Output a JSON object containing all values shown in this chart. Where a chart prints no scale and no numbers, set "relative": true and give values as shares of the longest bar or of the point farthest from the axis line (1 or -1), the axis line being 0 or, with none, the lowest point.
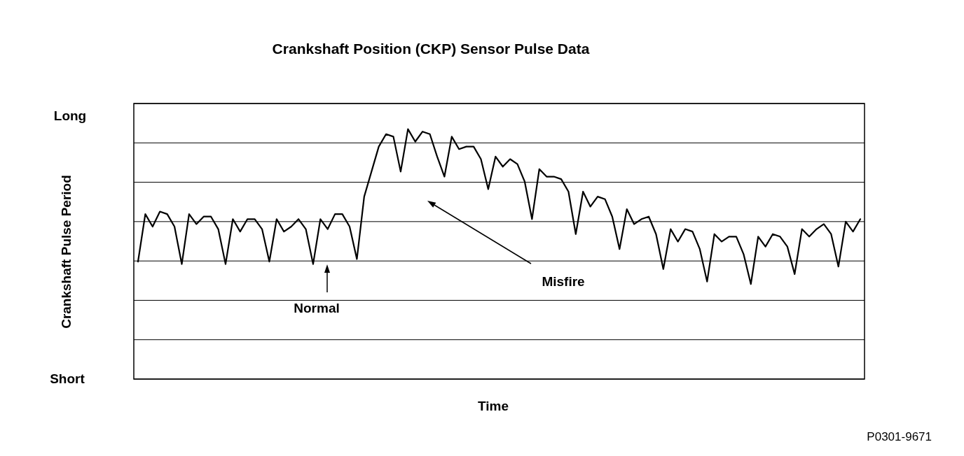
{
  "chart_data": {
    "type": "line",
    "title": "Crankshaft Position (CKP) Sensor Pulse Data",
    "xlabel": "Time",
    "ylabel": "Crankshaft Pulse Period",
    "annotations": [
      "Normal",
      "Misfire",
      "P0301-9671",
      "Long",
      "Short"
    ],
    "relative": true,
    "categories": [
      null,
      null,
      null,
      null,
      null,
      null,
      null,
      null,
      null,
      null,
      null,
      null,
      null,
      null,
      null,
      null,
      null,
      null,
      null,
      null,
      null,
      null,
      null,
      null,
      null,
      null,
      null,
      null,
      null,
      null,
      null,
      null,
      null,
      null,
      null,
      null,
      null,
      null,
      null,
      null,
      null,
      null,
      null,
      null,
      null,
      null,
      null,
      null,
      null,
      null,
      null,
      null,
      null,
      null,
      null,
      null,
      null,
      null,
      null,
      null,
      null,
      null,
      null,
      null,
      null,
      null,
      null,
      null,
      null,
      null,
      null,
      null,
      null,
      null,
      null,
      null,
      null,
      null,
      null,
      null,
      null,
      null,
      null,
      null,
      null,
      null,
      null,
      null,
      null,
      null,
      null,
      null,
      null,
      null,
      null,
      null,
      null,
      null,
      null,
      null
    ],
    "series": [
      {
        "color": "#000000",
        "values": [
          0.47,
          0.66,
          0.61,
          0.67,
          0.66,
          0.61,
          0.46,
          0.66,
          0.62,
          0.65,
          0.65,
          0.6,
          0.46,
          0.64,
          0.59,
          0.64,
          0.64,
          0.6,
          0.47,
          0.64,
          0.59,
          0.61,
          0.64,
          0.6,
          0.46,
          0.64,
          0.6,
          0.66,
          0.66,
          0.61,
          0.48,
          0.73,
          0.83,
          0.93,
          0.98,
          0.97,
          0.83,
          1,
          0.95,
          0.99,
          0.98,
          0.89,
          0.81,
          0.97,
          0.92,
          0.93,
          0.93,
          0.88,
          0.76,
          0.89,
          0.85,
          0.88,
          0.86,
          0.79,
          0.64,
          0.84,
          0.81,
          0.81,
          0.8,
          0.75,
          0.58,
          0.75,
          0.69,
          0.73,
          0.72,
          0.65,
          0.52,
          0.68,
          0.62,
          0.64,
          0.65,
          0.58,
          0.44,
          0.6,
          0.55,
          0.6,
          0.59,
          0.52,
          0.39,
          0.58,
          0.55,
          0.57,
          0.57,
          0.5,
          0.38,
          0.57,
          0.53,
          0.58,
          0.57,
          0.53,
          0.42,
          0.6,
          0.57,
          0.6,
          0.62,
          0.58,
          0.45,
          0.63,
          0.59,
          0.64
        ]
      }
    ],
    "grid": "y",
    "marker": "none",
    "line_style": "solid"
  }
}
